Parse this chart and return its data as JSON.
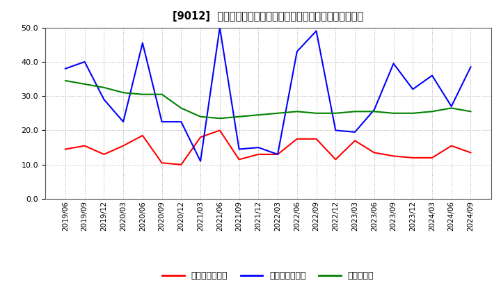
{
  "title": "[9012]  売上債権回転率、買入債務回転率、在庫回転率の推移",
  "dates": [
    "2019/06",
    "2019/09",
    "2019/12",
    "2020/03",
    "2020/06",
    "2020/09",
    "2020/12",
    "2021/03",
    "2021/06",
    "2021/09",
    "2021/12",
    "2022/03",
    "2022/06",
    "2022/09",
    "2022/12",
    "2023/03",
    "2023/06",
    "2023/09",
    "2023/12",
    "2024/03",
    "2024/06",
    "2024/09"
  ],
  "receivables_turnover": [
    14.5,
    15.5,
    13.0,
    15.5,
    18.5,
    10.5,
    10.0,
    18.0,
    20.0,
    11.5,
    13.0,
    13.0,
    17.5,
    17.5,
    11.5,
    17.0,
    13.5,
    12.5,
    12.0,
    12.0,
    15.5,
    13.5
  ],
  "payables_turnover": [
    38.0,
    40.0,
    29.0,
    22.5,
    45.5,
    22.5,
    22.5,
    11.0,
    50.0,
    14.5,
    15.0,
    13.0,
    43.0,
    49.0,
    20.0,
    19.5,
    26.0,
    39.5,
    32.0,
    36.0,
    27.0,
    38.5
  ],
  "inventory_turnover": [
    34.5,
    33.5,
    32.5,
    31.0,
    30.5,
    30.5,
    26.5,
    24.0,
    23.5,
    24.0,
    24.5,
    25.0,
    25.5,
    25.0,
    25.0,
    25.5,
    25.5,
    25.0,
    25.0,
    25.5,
    26.5,
    25.5
  ],
  "receivables_color": "#ff0000",
  "payables_color": "#0000ff",
  "inventory_color": "#008000",
  "ylim": [
    0.0,
    50.0
  ],
  "yticks": [
    0.0,
    10.0,
    20.0,
    30.0,
    40.0,
    50.0
  ],
  "bg_color": "#ffffff",
  "grid_color": "#aaaaaa",
  "legend_labels": [
    "売上債権回転率",
    "買入債務回転率",
    "在庫回転率"
  ]
}
